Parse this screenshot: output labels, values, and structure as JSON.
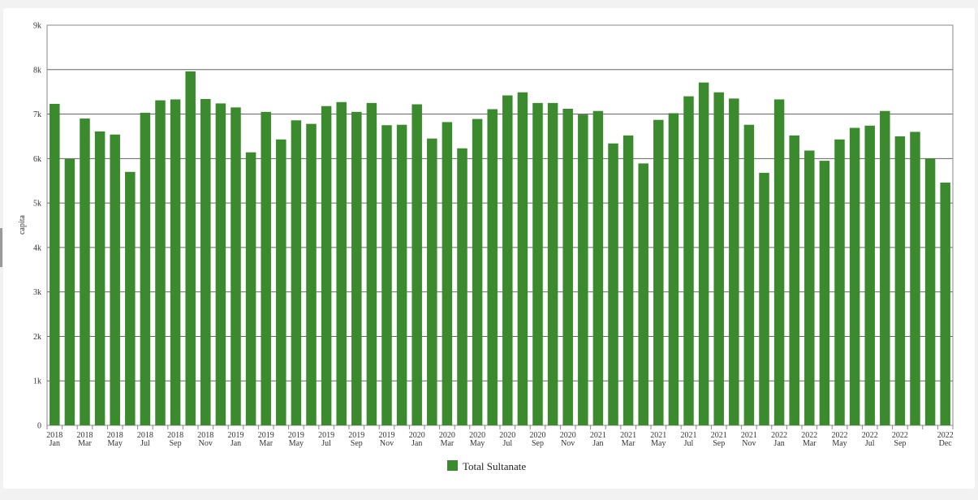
{
  "chart_data": {
    "type": "bar",
    "ylabel": "capita",
    "ylim": [
      0,
      9000
    ],
    "y_ticks": [
      {
        "value": 0,
        "label": "0"
      },
      {
        "value": 1000,
        "label": "1k"
      },
      {
        "value": 2000,
        "label": "2k"
      },
      {
        "value": 3000,
        "label": "3k"
      },
      {
        "value": 4000,
        "label": "4k"
      },
      {
        "value": 5000,
        "label": "5k"
      },
      {
        "value": 6000,
        "label": "6k"
      },
      {
        "value": 7000,
        "label": "7k"
      },
      {
        "value": 8000,
        "label": "8k"
      },
      {
        "value": 9000,
        "label": "9k"
      }
    ],
    "grid": "horizontal",
    "legend_position": "bottom-center",
    "bar_color": "#3c8a2e",
    "x_tick_labels": [
      {
        "index": 0,
        "year": "2018",
        "month": "Jan"
      },
      {
        "index": 2,
        "year": "2018",
        "month": "Mar"
      },
      {
        "index": 4,
        "year": "2018",
        "month": "May"
      },
      {
        "index": 6,
        "year": "2018",
        "month": "Jul"
      },
      {
        "index": 8,
        "year": "2018",
        "month": "Sep"
      },
      {
        "index": 10,
        "year": "2018",
        "month": "Nov"
      },
      {
        "index": 12,
        "year": "2019",
        "month": "Jan"
      },
      {
        "index": 14,
        "year": "2019",
        "month": "Mar"
      },
      {
        "index": 16,
        "year": "2019",
        "month": "May"
      },
      {
        "index": 18,
        "year": "2019",
        "month": "Jul"
      },
      {
        "index": 20,
        "year": "2019",
        "month": "Sep"
      },
      {
        "index": 22,
        "year": "2019",
        "month": "Nov"
      },
      {
        "index": 24,
        "year": "2020",
        "month": "Jan"
      },
      {
        "index": 26,
        "year": "2020",
        "month": "Mar"
      },
      {
        "index": 28,
        "year": "2020",
        "month": "May"
      },
      {
        "index": 30,
        "year": "2020",
        "month": "Jul"
      },
      {
        "index": 32,
        "year": "2020",
        "month": "Sep"
      },
      {
        "index": 34,
        "year": "2020",
        "month": "Nov"
      },
      {
        "index": 36,
        "year": "2021",
        "month": "Jan"
      },
      {
        "index": 38,
        "year": "2021",
        "month": "Mar"
      },
      {
        "index": 40,
        "year": "2021",
        "month": "May"
      },
      {
        "index": 42,
        "year": "2021",
        "month": "Jul"
      },
      {
        "index": 44,
        "year": "2021",
        "month": "Sep"
      },
      {
        "index": 46,
        "year": "2021",
        "month": "Nov"
      },
      {
        "index": 48,
        "year": "2022",
        "month": "Jan"
      },
      {
        "index": 50,
        "year": "2022",
        "month": "Mar"
      },
      {
        "index": 52,
        "year": "2022",
        "month": "May"
      },
      {
        "index": 54,
        "year": "2022",
        "month": "Jul"
      },
      {
        "index": 56,
        "year": "2022",
        "month": "Sep"
      },
      {
        "index": 59,
        "year": "2022",
        "month": "Dec"
      }
    ],
    "series": [
      {
        "name": "Total Sultanate",
        "values": [
          7230,
          5990,
          6900,
          6610,
          6540,
          5700,
          7030,
          7310,
          7330,
          7960,
          7340,
          7240,
          7150,
          6140,
          7050,
          6430,
          6860,
          6780,
          7180,
          7270,
          7050,
          7250,
          6750,
          6760,
          7220,
          6450,
          6820,
          6230,
          6890,
          7110,
          7420,
          7490,
          7250,
          7250,
          7120,
          6990,
          7070,
          6340,
          6520,
          5890,
          6870,
          7020,
          7400,
          7710,
          7490,
          7350,
          6760,
          5680,
          7330,
          6520,
          6180,
          5950,
          6430,
          6690,
          6740,
          7070,
          6500,
          6600,
          6000,
          5460
        ]
      }
    ]
  }
}
